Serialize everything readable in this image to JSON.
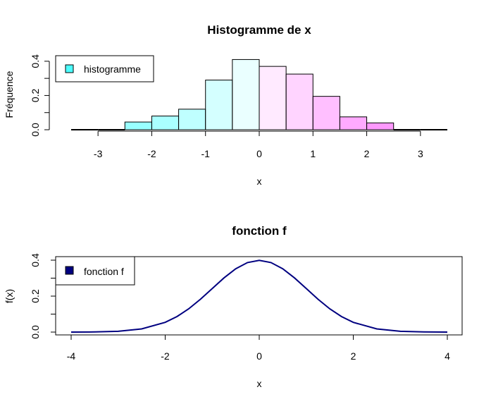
{
  "chart_data": [
    {
      "type": "bar",
      "title": "Histogramme de x",
      "xlabel": "x",
      "ylabel": "Fréquence",
      "xlim": [
        -3.5,
        3.5
      ],
      "ylim": [
        0,
        0.42
      ],
      "x_ticks": [
        "-3",
        "-2",
        "-1",
        "0",
        "1",
        "2",
        "3"
      ],
      "y_ticks": [
        "0.0",
        "0.2",
        "0.4"
      ],
      "bins": [
        {
          "from": -3.5,
          "to": -3.0,
          "value": 0.0,
          "color": "#00FFFF"
        },
        {
          "from": -3.0,
          "to": -2.5,
          "value": 0.0,
          "color": "#11FFFF"
        },
        {
          "from": -2.5,
          "to": -2.0,
          "value": 0.045,
          "color": "#33FFFF"
        },
        {
          "from": -2.0,
          "to": -1.5,
          "value": 0.08,
          "color": "#55FFFF"
        },
        {
          "from": -1.5,
          "to": -1.0,
          "value": 0.12,
          "color": "#80FFFF"
        },
        {
          "from": -1.0,
          "to": -0.5,
          "value": 0.29,
          "color": "#AAFFFF"
        },
        {
          "from": -0.5,
          "to": 0.0,
          "value": 0.41,
          "color": "#D5FFFF"
        },
        {
          "from": 0.0,
          "to": 0.5,
          "value": 0.37,
          "color": "#FFD5FF"
        },
        {
          "from": 0.5,
          "to": 1.0,
          "value": 0.325,
          "color": "#FFAAFF"
        },
        {
          "from": 1.0,
          "to": 1.5,
          "value": 0.195,
          "color": "#FF80FF"
        },
        {
          "from": 1.5,
          "to": 2.0,
          "value": 0.075,
          "color": "#FF55FF"
        },
        {
          "from": 2.0,
          "to": 2.5,
          "value": 0.04,
          "color": "#FF33FF"
        },
        {
          "from": 2.5,
          "to": 3.0,
          "value": 0.0,
          "color": "#FF11FF"
        },
        {
          "from": 3.0,
          "to": 3.5,
          "value": 0.0,
          "color": "#FF00FF"
        }
      ],
      "legend": {
        "label": "histogramme",
        "color": "#00FFFF",
        "placement": "top-left"
      }
    },
    {
      "type": "line",
      "title": "fonction f",
      "xlabel": "x",
      "ylabel": "f(x)",
      "xlim": [
        -4,
        4
      ],
      "ylim": [
        0,
        0.4
      ],
      "x_ticks": [
        "-4",
        "-2",
        "0",
        "2",
        "4"
      ],
      "y_ticks": [
        "0.0",
        "0.2",
        "0.4"
      ],
      "series": [
        {
          "name": "fonction f",
          "color": "#000080",
          "x": [
            -4.0,
            -3.5,
            -3.0,
            -2.5,
            -2.0,
            -1.75,
            -1.5,
            -1.25,
            -1.0,
            -0.75,
            -0.5,
            -0.25,
            0.0,
            0.25,
            0.5,
            0.75,
            1.0,
            1.25,
            1.5,
            1.75,
            2.0,
            2.5,
            3.0,
            3.5,
            4.0
          ],
          "y": [
            0.0001,
            0.0009,
            0.0044,
            0.0175,
            0.054,
            0.0863,
            0.1295,
            0.1826,
            0.242,
            0.3011,
            0.3521,
            0.3867,
            0.3989,
            0.3867,
            0.3521,
            0.3011,
            0.242,
            0.1826,
            0.1295,
            0.0863,
            0.054,
            0.0175,
            0.0044,
            0.0009,
            0.0001
          ]
        }
      ],
      "legend": {
        "label": "fonction f",
        "color": "#000080",
        "placement": "top-left"
      }
    }
  ]
}
